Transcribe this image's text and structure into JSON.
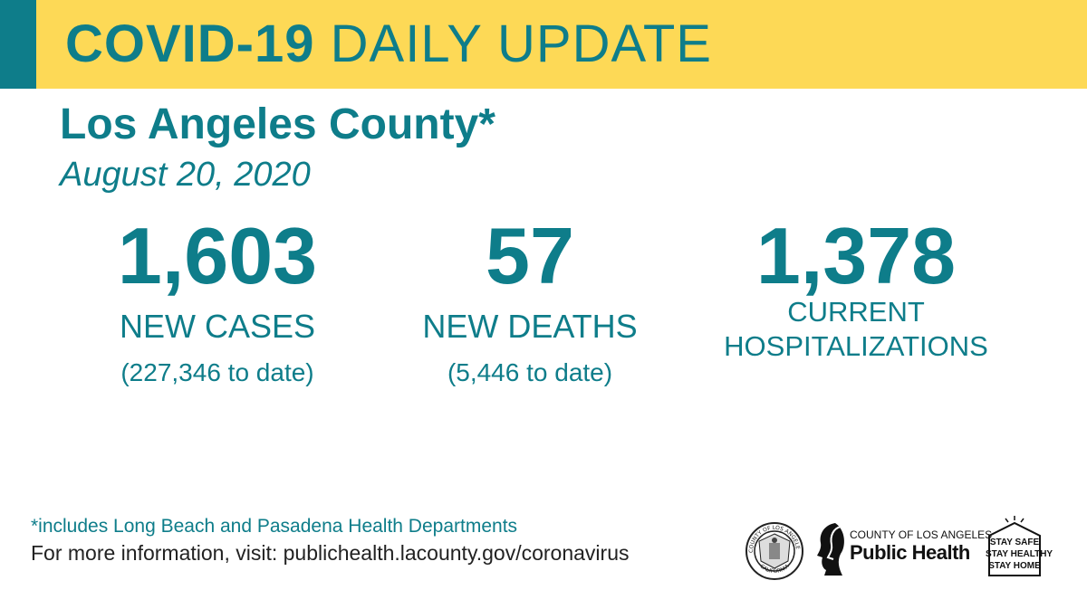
{
  "header": {
    "title_bold": "COVID-19",
    "title_light": "DAILY UPDATE"
  },
  "county": "Los Angeles County*",
  "date": "August 20, 2020",
  "stats": {
    "cases": {
      "number": "1,603",
      "label": "NEW CASES",
      "sub": "(227,346 to date)"
    },
    "deaths": {
      "number": "57",
      "label": "NEW DEATHS",
      "sub": "(5,446 to date)"
    },
    "hospitalizations": {
      "number": "1,378",
      "label_line1": "CURRENT",
      "label_line2": "HOSPITALIZATIONS"
    }
  },
  "footer": {
    "footnote": "*includes Long Beach and Pasadena Health Departments",
    "more_info": "For more information, visit: publichealth.lacounty.gov/coronavirus"
  },
  "logos": {
    "seal": {
      "icon": "county-seal-icon",
      "text_top": "COUNTY OF LOS ANGELES",
      "text_bottom": "CALIFORNIA"
    },
    "public_health": {
      "line1": "COUNTY OF LOS ANGELES",
      "line2": "Public Health"
    },
    "stay_safe": {
      "line1": "STAY SAFE",
      "line2": "STAY HEALTHY",
      "line3": "STAY HOME"
    }
  },
  "colors": {
    "teal": "#0e7d8a",
    "banner_yellow": "#fdd956",
    "text_dark": "#222222"
  }
}
